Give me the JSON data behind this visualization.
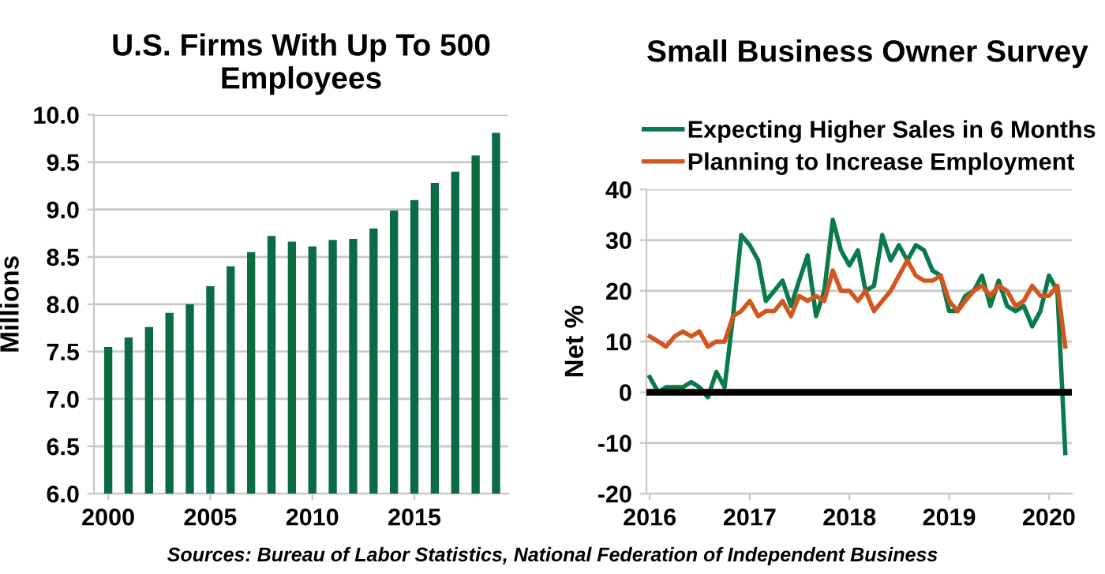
{
  "chart_data": [
    {
      "type": "bar",
      "title": "U.S. Firms With Up To 500\nEmployees",
      "ylabel": "Millions",
      "x": [
        2000,
        2001,
        2002,
        2003,
        2004,
        2005,
        2006,
        2007,
        2008,
        2009,
        2010,
        2011,
        2012,
        2013,
        2014,
        2015,
        2016,
        2017,
        2018,
        2019
      ],
      "values": [
        7.55,
        7.65,
        7.76,
        7.91,
        8.0,
        8.19,
        8.4,
        8.55,
        8.72,
        8.66,
        8.61,
        8.68,
        8.69,
        8.8,
        8.99,
        9.1,
        9.28,
        9.4,
        9.57,
        9.81
      ],
      "color": "#0b6b45",
      "xlim": [
        1999.3,
        2019.6
      ],
      "xticks": [
        2000,
        2005,
        2010,
        2015
      ],
      "ylim": [
        6,
        10
      ],
      "yticks": [
        {
          "value": 6,
          "label": "6.0"
        },
        {
          "value": 6.5,
          "label": "6.5"
        },
        {
          "value": 7,
          "label": "7.0"
        },
        {
          "value": 7.5,
          "label": "7.5"
        },
        {
          "value": 8,
          "label": "8.0"
        },
        {
          "value": 8.5,
          "label": "8.5"
        },
        {
          "value": 9,
          "label": "9.0"
        },
        {
          "value": 9.5,
          "label": "9.5"
        },
        {
          "value": 10,
          "label": "10.0"
        }
      ],
      "grid": "y",
      "annotations": [
        "Sources: Bureau of Labor Statistics, National Federation of Independent Business"
      ]
    },
    {
      "type": "line",
      "title": "Small Business Owner Survey",
      "ylabel": "Net %",
      "x": [
        "2016-01",
        "2016-02",
        "2016-03",
        "2016-04",
        "2016-05",
        "2016-06",
        "2016-07",
        "2016-08",
        "2016-09",
        "2016-10",
        "2016-11",
        "2016-12",
        "2017-01",
        "2017-02",
        "2017-03",
        "2017-04",
        "2017-05",
        "2017-06",
        "2017-07",
        "2017-08",
        "2017-09",
        "2017-10",
        "2017-11",
        "2017-12",
        "2018-01",
        "2018-02",
        "2018-03",
        "2018-04",
        "2018-05",
        "2018-06",
        "2018-07",
        "2018-08",
        "2018-09",
        "2018-10",
        "2018-11",
        "2018-12",
        "2019-01",
        "2019-02",
        "2019-03",
        "2019-04",
        "2019-05",
        "2019-06",
        "2019-07",
        "2019-08",
        "2019-09",
        "2019-10",
        "2019-11",
        "2019-12",
        "2020-01",
        "2020-02",
        "2020-03"
      ],
      "series": [
        {
          "name": "Expecting Higher Sales in 6 Months",
          "color": "#0b7a4b",
          "values": [
            3,
            0,
            1,
            1,
            1,
            2,
            1,
            -1,
            4,
            1,
            15,
            31,
            29,
            26,
            18,
            20,
            22,
            17,
            22,
            27,
            15,
            20,
            34,
            28,
            25,
            28,
            20,
            21,
            31,
            26,
            29,
            26,
            29,
            28,
            24,
            23,
            16,
            16,
            19,
            20,
            23,
            17,
            22,
            17,
            16,
            17,
            13,
            16,
            23,
            20,
            -12
          ]
        },
        {
          "name": "Planning to Increase Employment",
          "color": "#d4561f",
          "values": [
            11,
            10,
            9,
            11,
            12,
            11,
            12,
            9,
            10,
            10,
            15,
            16,
            18,
            15,
            16,
            16,
            18,
            15,
            19,
            18,
            19,
            18,
            24,
            20,
            20,
            18,
            20,
            16,
            18,
            20,
            23,
            26,
            23,
            22,
            22,
            23,
            18,
            16,
            18,
            20,
            21,
            19,
            21,
            20,
            17,
            18,
            21,
            19,
            19,
            21,
            9
          ]
        }
      ],
      "xlim": [
        "2015-12-20",
        "2020-03-25"
      ],
      "xticks": [
        {
          "value": "2016-01",
          "label": "2016"
        },
        {
          "value": "2017-01",
          "label": "2017"
        },
        {
          "value": "2018-01",
          "label": "2018"
        },
        {
          "value": "2019-01",
          "label": "2019"
        },
        {
          "value": "2020-01",
          "label": "2020"
        }
      ],
      "ylim": [
        -20,
        40
      ],
      "yticks": [
        -20,
        -10,
        0,
        10,
        20,
        30,
        40
      ],
      "grid": "y",
      "legend": "top",
      "ref_lines": [
        {
          "axis": "y",
          "value": 0,
          "color": "#000000"
        }
      ]
    }
  ]
}
